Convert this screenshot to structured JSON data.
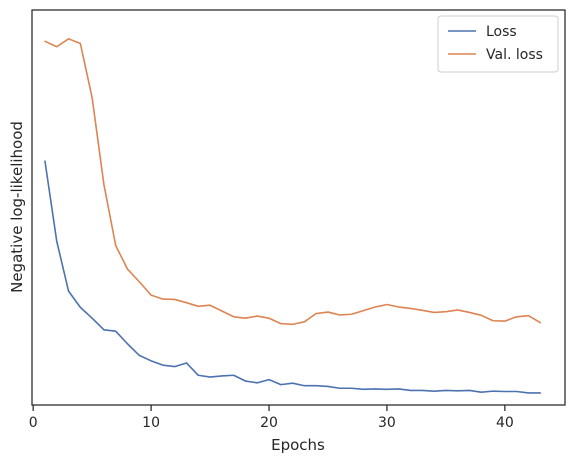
{
  "chart_data": {
    "type": "line",
    "title": "",
    "xlabel": "Epochs",
    "ylabel": "Negative log-likelihood",
    "xlim": [
      -0.1,
      45.1
    ],
    "ylim": [
      0,
      1
    ],
    "x_ticks": [
      0,
      10,
      20,
      30,
      40
    ],
    "y_ticks": [],
    "grid": false,
    "legend_position": "top-right",
    "x": [
      1,
      2,
      3,
      4,
      5,
      6,
      7,
      8,
      9,
      10,
      11,
      12,
      13,
      14,
      15,
      16,
      17,
      18,
      19,
      20,
      21,
      22,
      23,
      24,
      25,
      26,
      27,
      28,
      29,
      30,
      31,
      32,
      33,
      34,
      35,
      36,
      37,
      38,
      39,
      40,
      41,
      42,
      43
    ],
    "series": [
      {
        "name": "Loss",
        "color": "#4c72b0",
        "values": [
          0.656,
          0.434,
          0.296,
          0.251,
          0.221,
          0.189,
          0.185,
          0.15,
          0.118,
          0.103,
          0.091,
          0.087,
          0.097,
          0.063,
          0.058,
          0.061,
          0.063,
          0.047,
          0.042,
          0.051,
          0.037,
          0.041,
          0.034,
          0.034,
          0.032,
          0.027,
          0.027,
          0.024,
          0.025,
          0.024,
          0.025,
          0.021,
          0.021,
          0.019,
          0.021,
          0.02,
          0.021,
          0.016,
          0.019,
          0.018,
          0.018,
          0.014,
          0.014
        ]
      },
      {
        "name": "Val. loss",
        "color": "#dd8452",
        "values": [
          0.988,
          0.973,
          0.995,
          0.982,
          0.832,
          0.591,
          0.422,
          0.357,
          0.322,
          0.285,
          0.274,
          0.273,
          0.264,
          0.254,
          0.257,
          0.241,
          0.225,
          0.221,
          0.227,
          0.221,
          0.206,
          0.204,
          0.211,
          0.234,
          0.238,
          0.23,
          0.232,
          0.242,
          0.252,
          0.259,
          0.252,
          0.248,
          0.243,
          0.237,
          0.239,
          0.244,
          0.237,
          0.229,
          0.214,
          0.213,
          0.225,
          0.228,
          0.209
        ]
      }
    ]
  }
}
